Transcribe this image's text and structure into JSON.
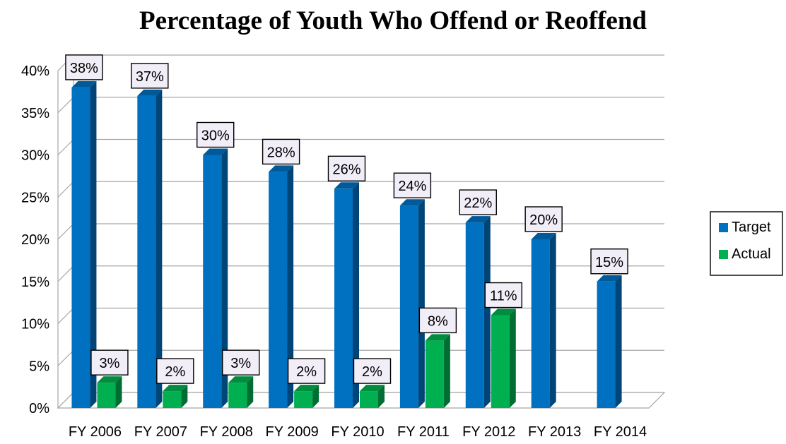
{
  "chart_data": {
    "type": "bar",
    "title": "Percentage of Youth Who Offend or Reoffend",
    "xlabel": "",
    "ylabel": "",
    "categories": [
      "FY 2006",
      "FY 2007",
      "FY 2008",
      "FY 2009",
      "FY 2010",
      "FY 2011",
      "FY 2012",
      "FY 2013",
      "FY 2014"
    ],
    "series": [
      {
        "name": "Target",
        "values": [
          38,
          37,
          30,
          28,
          26,
          24,
          22,
          20,
          15
        ],
        "labels": [
          "38%",
          "37%",
          "30%",
          "28%",
          "26%",
          "24%",
          "22%",
          "20%",
          "15%"
        ],
        "color": "#0070c0"
      },
      {
        "name": "Actual",
        "values": [
          3,
          2,
          3,
          2,
          2,
          8,
          11,
          null,
          null
        ],
        "labels": [
          "3%",
          "2%",
          "3%",
          "2%",
          "2%",
          "8%",
          "11%",
          null,
          null
        ],
        "color": "#00b050"
      }
    ],
    "ylim": [
      0,
      40
    ],
    "ytick_labels": [
      "0%",
      "5%",
      "10%",
      "15%",
      "20%",
      "25%",
      "30%",
      "35%",
      "40%"
    ],
    "grid": true,
    "legend": "right",
    "style": "3d-columns"
  }
}
